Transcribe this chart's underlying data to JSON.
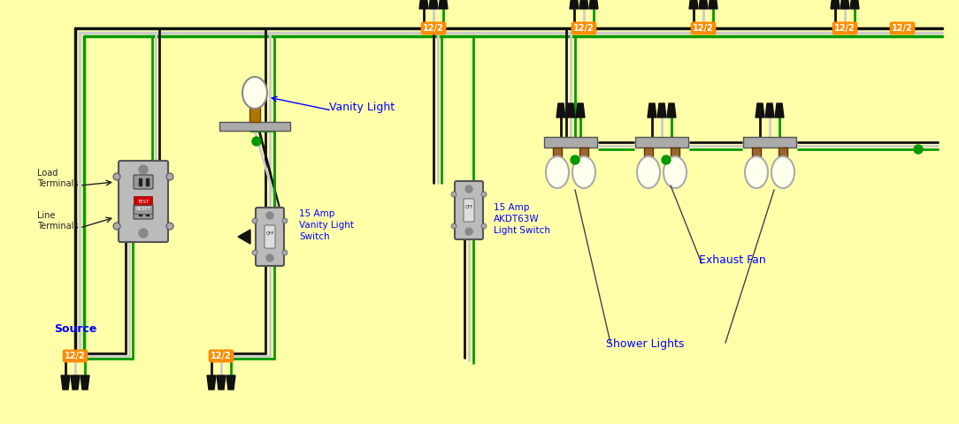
{
  "background_color": "#FFFFAA",
  "wire_black": "#111111",
  "wire_white": "#CCCCCC",
  "wire_green": "#009900",
  "orange_bg": "#FF8C00",
  "label_122": "12/2",
  "source_label": "Source",
  "load_terminals": "Load\nTerminals",
  "line_terminals": "Line\nTerminals",
  "vanity_light": "Vanity Light",
  "switch1": "15 Amp\nVanity Light\nSwitch",
  "switch2": "15 Amp\nAKDT63W\nLight Switch",
  "exhaust_fan": "Exhaust Fan",
  "shower_lights": "Shower Lights"
}
